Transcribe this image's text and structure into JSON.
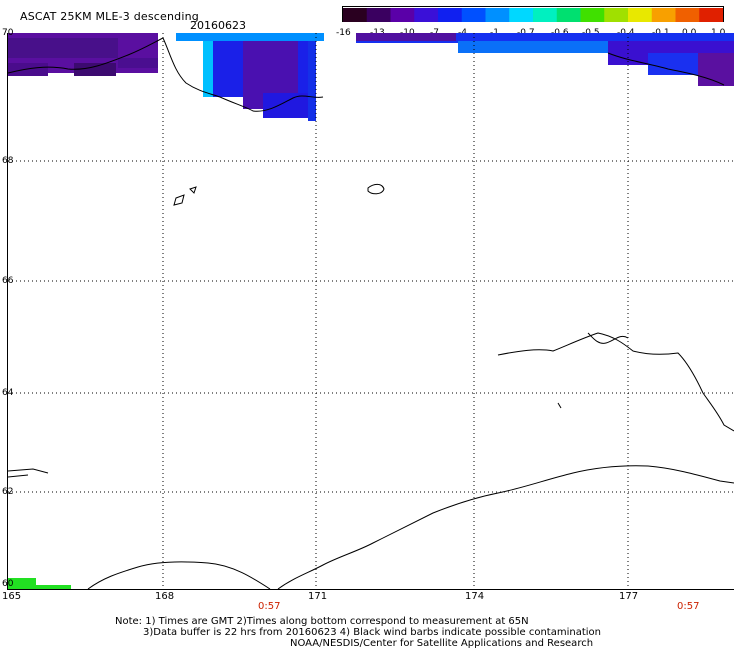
{
  "title": "ASCAT 25KM MLE-3 descending",
  "date": "20160623",
  "colorbar": {
    "labels": [
      "-16",
      "-13",
      "-10",
      "-7",
      "-4",
      "-1",
      "-0.7",
      "-0.6",
      "-0.5",
      "-0.4",
      "-0.1",
      "0.0",
      "1.0"
    ],
    "colors": [
      "#2a0020",
      "#3a0060",
      "#5a00a8",
      "#3a10d8",
      "#1020f0",
      "#0050ff",
      "#0090ff",
      "#00d8ff",
      "#00f0c0",
      "#00e070",
      "#40e000",
      "#a0e000",
      "#e8e800",
      "#f8a000",
      "#f06000",
      "#e02000"
    ]
  },
  "map": {
    "lat_labels": [
      "70",
      "68",
      "66",
      "64",
      "62",
      "60"
    ],
    "lon_labels": [
      "165",
      "168",
      "171",
      "174",
      "177"
    ],
    "time_labels": [
      "0:57",
      "0:57"
    ]
  },
  "notes": {
    "line1": "Note: 1) Times are GMT 2)Times along bottom correspond to measurement at 65N",
    "line2": "3)Data buffer is 22 hrs from 20160623 4) Black wind barbs indicate possible contamination",
    "line3": "NOAA/NESDIS/Center for Satellite Applications and Research"
  }
}
